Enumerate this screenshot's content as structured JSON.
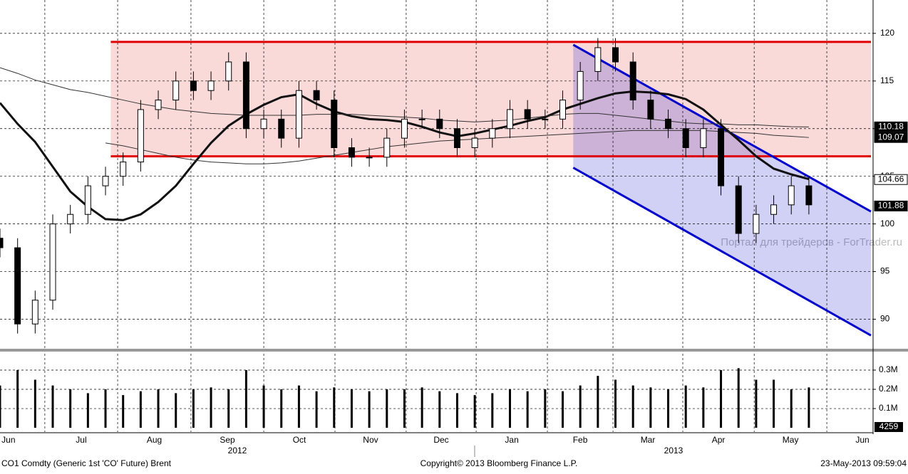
{
  "chart_data": {
    "type": "candlestick",
    "footer_left": "CO1 Comdty (Generic 1st 'CO' Future) Brent",
    "copyright": "Copyright© 2013 Bloomberg Finance L.P.",
    "timestamp": "23-May-2013 09:59:04",
    "watermark": "Портал для трейдеров - ForTrader.ru",
    "months": [
      "Jun",
      "Jul",
      "Aug",
      "Sep",
      "Oct",
      "Nov",
      "Dec",
      "Jan",
      "Feb",
      "Mar",
      "Apr",
      "May",
      "Jun"
    ],
    "month_starts": [
      2.55,
      6.69,
      10.86,
      15,
      19.05,
      23.1,
      27.08,
      31.13,
      34.86,
      38.83,
      42.89,
      47.02
    ],
    "years": [
      "2012",
      "2013"
    ],
    "xlim": [
      0,
      49.53
    ],
    "ylim": [
      86.9,
      123.5
    ],
    "yticks": [
      90,
      95,
      100,
      105,
      110,
      115,
      120
    ],
    "grid": true,
    "open": [
      98.5,
      97.5,
      89.5,
      92,
      100,
      101,
      104,
      105,
      106.5,
      112,
      113,
      115,
      114,
      115,
      117,
      110,
      111,
      109,
      114,
      113,
      108,
      107,
      107,
      109,
      111,
      111,
      110,
      108,
      109,
      110,
      112,
      111,
      111,
      113,
      116,
      118.5,
      117,
      113,
      111,
      110,
      108,
      110,
      104,
      99,
      101,
      102,
      104
    ],
    "high": [
      99.5,
      98.5,
      93,
      101,
      102,
      105,
      106,
      107.5,
      113,
      114,
      116,
      116,
      116,
      118,
      118,
      112,
      112,
      115,
      115,
      114,
      109,
      108,
      110,
      112,
      112,
      112,
      111,
      110,
      111,
      113,
      113,
      112,
      114,
      117,
      119.5,
      119.5,
      118,
      114,
      112,
      111,
      111,
      111,
      105,
      102,
      103,
      105,
      105
    ],
    "low": [
      96.5,
      88.5,
      88.5,
      91,
      99,
      100,
      103,
      104,
      105.5,
      111,
      112,
      113,
      113,
      114,
      109,
      109,
      108,
      108,
      112,
      107,
      106,
      106,
      106,
      108,
      110,
      109,
      107,
      107,
      108,
      109,
      110,
      110,
      110,
      112,
      115,
      116,
      112,
      110,
      109,
      107,
      107,
      103,
      98,
      98,
      100,
      101,
      101
    ],
    "close": [
      97.5,
      89.5,
      92,
      100,
      101,
      104,
      105,
      106.5,
      112,
      113,
      115,
      114,
      115,
      117,
      110,
      111,
      109,
      114,
      113,
      108,
      107,
      107,
      109,
      111,
      111,
      110,
      108,
      109,
      110,
      112,
      111,
      111,
      113,
      116,
      118.5,
      117,
      113,
      111,
      110,
      108,
      110,
      104,
      99,
      101,
      102,
      104,
      102
    ],
    "moving_averages": [
      {
        "color": "#111111",
        "width": 3,
        "values": [
          112.7,
          110.5,
          108.6,
          106,
          103.4,
          101.8,
          100.5,
          100.4,
          101,
          102.3,
          104,
          106.3,
          108.5,
          110.3,
          111.5,
          112.5,
          113.3,
          113.6,
          112.6,
          111.8,
          111.3,
          111,
          110.9,
          110.7,
          110.2,
          109.6,
          109.2,
          109.5,
          109.9,
          110.3,
          110.8,
          111.2,
          112,
          112.6,
          113.2,
          113.7,
          113.9,
          113.8,
          113.6,
          113.1,
          112,
          110.4,
          108.8,
          107.1,
          105.8,
          105.2,
          104.7
        ]
      },
      {
        "color": "#333333",
        "width": 1,
        "values": [
          116.4,
          115.8,
          115.1,
          114.6,
          114.1,
          113.8,
          113.4,
          113,
          112.6,
          112.3,
          112,
          111.8,
          111.6,
          111.5,
          111.4,
          111.4,
          111.4,
          111.4,
          111.5,
          111.5,
          111.5,
          111.4,
          111.3,
          111.2,
          111.1,
          110.9,
          110.8,
          110.7,
          110.8,
          110.9,
          111.1,
          111.3,
          111.5,
          111.6,
          111.6,
          111.4,
          111.2,
          111,
          110.8,
          110.6,
          110.5,
          110.5,
          110.4,
          110.4,
          110.3,
          110.2,
          110.18
        ]
      },
      {
        "color": "#333333",
        "width": 1,
        "values": [
          null,
          null,
          null,
          null,
          null,
          null,
          108.5,
          108.2,
          107.8,
          107.4,
          107,
          106.7,
          106.5,
          106.4,
          106.3,
          106.3,
          106.4,
          106.6,
          106.9,
          107.2,
          107.5,
          107.8,
          108.1,
          108.3,
          108.5,
          108.7,
          108.8,
          108.9,
          109,
          109.1,
          109.2,
          109.3,
          109.4,
          109.5,
          109.6,
          109.7,
          109.8,
          109.8,
          109.8,
          109.8,
          109.8,
          109.7,
          109.6,
          109.5,
          109.3,
          109.2,
          109.07
        ]
      }
    ],
    "range_box": {
      "x": [
        6.3,
        49.53
      ],
      "y": [
        107.1,
        119.1
      ],
      "color": "#e00000"
    },
    "channel": {
      "x": [
        32.6,
        49.53
      ],
      "upper": [
        118.8,
        101.3
      ],
      "lower": [
        105.9,
        88.3
      ],
      "color": "#0000cc"
    },
    "price_tags": [
      110.18,
      109.07,
      104.66,
      101.88
    ],
    "price_tag_styles": [
      "dark",
      "dark",
      "light",
      "dark"
    ],
    "volume": [
      0.22,
      0.3,
      0.25,
      0.22,
      0.2,
      0.18,
      0.2,
      0.17,
      0.19,
      0.2,
      0.18,
      0.2,
      0.21,
      0.2,
      0.3,
      0.22,
      0.2,
      0.22,
      0.19,
      0.21,
      0.2,
      0.19,
      0.2,
      0.2,
      0.21,
      0.19,
      0.18,
      0.17,
      0.18,
      0.2,
      0.19,
      0.2,
      0.19,
      0.22,
      0.27,
      0.25,
      0.22,
      0.21,
      0.2,
      0.22,
      0.21,
      0.3,
      0.31,
      0.25,
      0.25,
      0.2,
      0.21
    ],
    "volume_ylim": [
      -0.022,
      0.4
    ],
    "volume_yticks": [
      {
        "value": 0.1,
        "label": "0.1M"
      },
      {
        "value": 0.2,
        "label": "0.2M"
      },
      {
        "value": 0.3,
        "label": "0.3M"
      }
    ],
    "volume_last": 4259
  }
}
